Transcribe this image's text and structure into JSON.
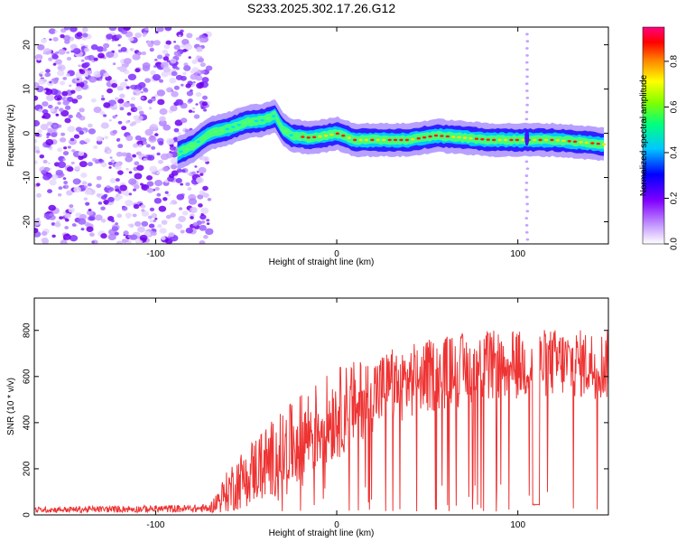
{
  "title": "S233.2025.302.17.26.G12",
  "chart_data": [
    {
      "type": "heatmap",
      "xlabel": "Height of straight line (km)",
      "ylabel": "Frequency (Hz)",
      "xlim": [
        -167,
        150
      ],
      "ylim": [
        -25,
        24
      ],
      "xticks": [
        -100,
        0,
        100
      ],
      "yticks": [
        -20,
        -10,
        0,
        10,
        20
      ],
      "colorbar": {
        "label": "Normalized spectral amplitude",
        "range": [
          0,
          0.95
        ],
        "ticks": [
          "0.0",
          "0.2",
          "0.4",
          "0.6",
          "0.8"
        ],
        "colors": [
          "#ffffff",
          "#c8a0ff",
          "#8000ff",
          "#0000ff",
          "#00c8ff",
          "#00ff80",
          "#80ff00",
          "#ffff00",
          "#ff8000",
          "#ff0000",
          "#ff0080"
        ]
      },
      "noise_region_x": [
        -167,
        -70
      ],
      "ridge": [
        {
          "x": -88,
          "f": -4.5
        },
        {
          "x": -80,
          "f": -3
        },
        {
          "x": -70,
          "f": 0
        },
        {
          "x": -60,
          "f": 1
        },
        {
          "x": -50,
          "f": 2.5
        },
        {
          "x": -40,
          "f": 3
        },
        {
          "x": -34,
          "f": 4
        },
        {
          "x": -30,
          "f": 1
        },
        {
          "x": -25,
          "f": -0.5
        },
        {
          "x": -15,
          "f": -1
        },
        {
          "x": -5,
          "f": -0.5
        },
        {
          "x": 0,
          "f": 0
        },
        {
          "x": 10,
          "f": -1.5
        },
        {
          "x": 25,
          "f": -1.5
        },
        {
          "x": 40,
          "f": -1.5
        },
        {
          "x": 55,
          "f": -0.5
        },
        {
          "x": 70,
          "f": -1
        },
        {
          "x": 85,
          "f": -1.5
        },
        {
          "x": 100,
          "f": -1.5
        },
        {
          "x": 108,
          "f": -1.5
        },
        {
          "x": 120,
          "f": -1.5
        },
        {
          "x": 135,
          "f": -2
        },
        {
          "x": 148,
          "f": -2.5
        }
      ],
      "spike_x": 105
    },
    {
      "type": "line",
      "xlabel": "Height of straight line (km)",
      "ylabel": "SNR (10 * v/v)",
      "xlim": [
        -167,
        150
      ],
      "ylim": [
        0,
        940
      ],
      "xticks": [
        -100,
        0,
        100
      ],
      "yticks": [
        0,
        200,
        400,
        600,
        800
      ],
      "color": "#ee3333",
      "envelope": [
        {
          "x": -167,
          "base": 22,
          "amp": 12
        },
        {
          "x": -70,
          "base": 28,
          "amp": 18
        },
        {
          "x": -58,
          "base": 120,
          "amp": 110
        },
        {
          "x": -45,
          "base": 200,
          "amp": 150
        },
        {
          "x": -30,
          "base": 270,
          "amp": 180
        },
        {
          "x": -15,
          "base": 360,
          "amp": 200
        },
        {
          "x": 0,
          "base": 440,
          "amp": 200
        },
        {
          "x": 20,
          "base": 530,
          "amp": 170
        },
        {
          "x": 40,
          "base": 580,
          "amp": 160
        },
        {
          "x": 60,
          "base": 620,
          "amp": 160
        },
        {
          "x": 80,
          "base": 640,
          "amp": 160
        },
        {
          "x": 100,
          "base": 650,
          "amp": 150
        },
        {
          "x": 120,
          "base": 660,
          "amp": 150
        },
        {
          "x": 150,
          "base": 650,
          "amp": 150
        }
      ],
      "dropouts_x": [
        -30,
        -20,
        7,
        12,
        18,
        27,
        31,
        35,
        44,
        55,
        62,
        75,
        81,
        88,
        95
      ],
      "dropout_floor": 15,
      "gap_x": [
        108,
        112
      ],
      "gap_value": 45
    }
  ]
}
